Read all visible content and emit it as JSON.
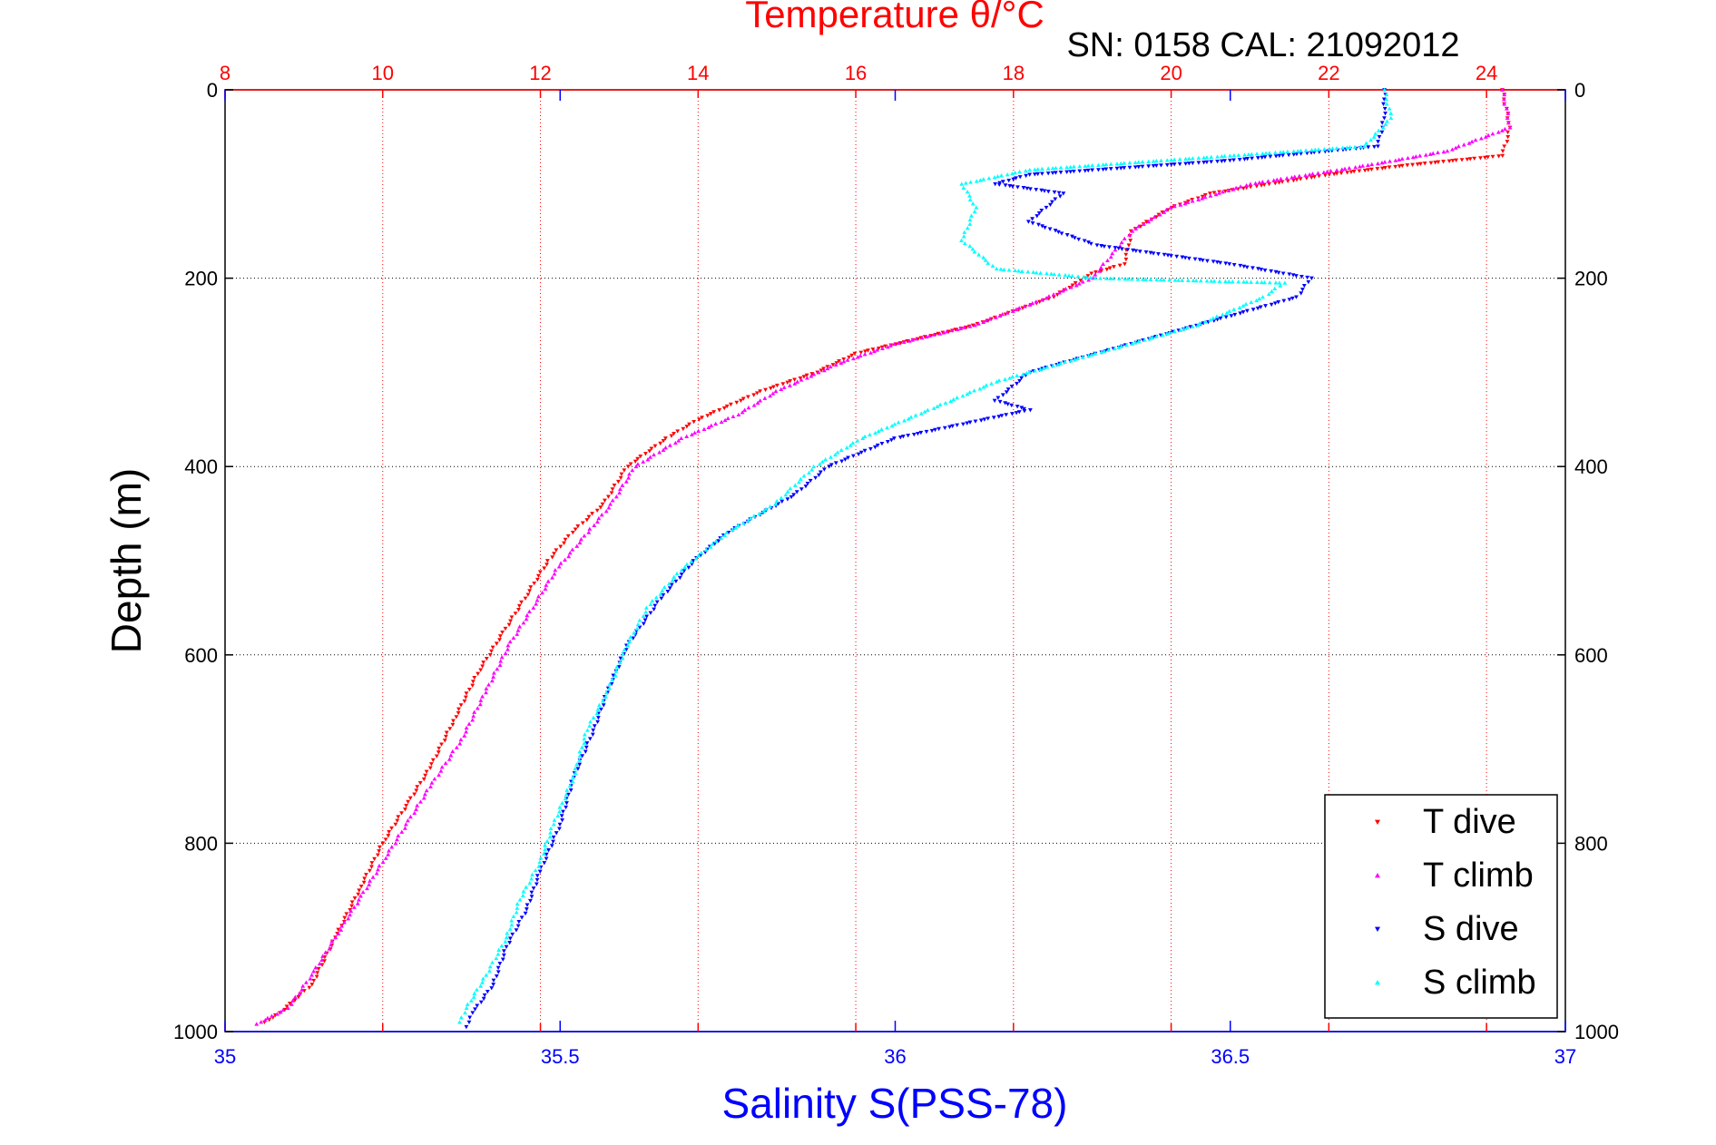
{
  "chart_data": {
    "type": "scatter",
    "title": "Temperature θ/°C",
    "subtitle": "SN: 0158  CAL: 21092012",
    "ylabel": "Depth (m)",
    "xlabel": "Salinity S(PSS-78)",
    "ylim": [
      0,
      1000
    ],
    "y_reversed": true,
    "y_ticks": [
      0,
      200,
      400,
      600,
      800,
      1000
    ],
    "x_top_label": "Temperature θ/°C",
    "x_top_lim": [
      8,
      25
    ],
    "x_top_ticks": [
      8,
      10,
      12,
      14,
      16,
      18,
      20,
      22,
      24
    ],
    "x_bottom_lim": [
      35,
      37
    ],
    "x_bottom_ticks": [
      "35",
      "35.5",
      "36",
      "36.5",
      "37"
    ],
    "grid": "dotted",
    "legend_position": "bottom-right",
    "colors": {
      "title": "#ff0000",
      "salinity_axis": "#0000ff",
      "t_dive": "#ff0000",
      "t_climb": "#ff00ff",
      "s_dive": "#0000ff",
      "s_climb": "#00ffff"
    },
    "series": [
      {
        "name": "T dive",
        "axis": "temperature",
        "marker": "triangle-down",
        "color": "#ff0000",
        "points": [
          [
            24.2,
            0
          ],
          [
            24.3,
            40
          ],
          [
            24.2,
            70
          ],
          [
            23.0,
            80
          ],
          [
            22.0,
            90
          ],
          [
            20.5,
            110
          ],
          [
            20.0,
            125
          ],
          [
            19.5,
            150
          ],
          [
            19.4,
            185
          ],
          [
            19.0,
            195
          ],
          [
            18.5,
            220
          ],
          [
            17.5,
            250
          ],
          [
            16.5,
            270
          ],
          [
            16.0,
            280
          ],
          [
            15.5,
            300
          ],
          [
            14.8,
            320
          ],
          [
            14.0,
            350
          ],
          [
            13.6,
            370
          ],
          [
            13.1,
            400
          ],
          [
            12.8,
            440
          ],
          [
            12.4,
            470
          ],
          [
            12.1,
            500
          ],
          [
            11.8,
            540
          ],
          [
            11.5,
            580
          ],
          [
            11.2,
            620
          ],
          [
            10.9,
            670
          ],
          [
            10.6,
            720
          ],
          [
            10.3,
            760
          ],
          [
            10.0,
            800
          ],
          [
            9.7,
            850
          ],
          [
            9.4,
            900
          ],
          [
            9.1,
            950
          ],
          [
            8.7,
            980
          ],
          [
            8.5,
            990
          ]
        ]
      },
      {
        "name": "T climb",
        "axis": "temperature",
        "marker": "triangle-up",
        "color": "#ff00ff",
        "points": [
          [
            24.2,
            0
          ],
          [
            24.3,
            40
          ],
          [
            23.5,
            65
          ],
          [
            22.5,
            80
          ],
          [
            21.0,
            100
          ],
          [
            20.0,
            125
          ],
          [
            19.5,
            150
          ],
          [
            19.3,
            170
          ],
          [
            19.0,
            200
          ],
          [
            18.3,
            225
          ],
          [
            17.5,
            250
          ],
          [
            16.5,
            270
          ],
          [
            15.8,
            290
          ],
          [
            15.0,
            320
          ],
          [
            14.5,
            345
          ],
          [
            13.8,
            370
          ],
          [
            13.2,
            400
          ],
          [
            12.9,
            440
          ],
          [
            12.6,
            470
          ],
          [
            12.2,
            510
          ],
          [
            11.9,
            550
          ],
          [
            11.6,
            590
          ],
          [
            11.3,
            640
          ],
          [
            11.0,
            690
          ],
          [
            10.6,
            740
          ],
          [
            10.3,
            780
          ],
          [
            10.0,
            820
          ],
          [
            9.7,
            860
          ],
          [
            9.4,
            900
          ],
          [
            9.1,
            940
          ],
          [
            8.8,
            975
          ],
          [
            8.4,
            992
          ]
        ]
      },
      {
        "name": "S dive",
        "axis": "salinity",
        "marker": "triangle-down",
        "color": "#0000ff",
        "points": [
          [
            36.73,
            0
          ],
          [
            36.73,
            30
          ],
          [
            36.72,
            60
          ],
          [
            36.5,
            75
          ],
          [
            36.2,
            90
          ],
          [
            36.15,
            100
          ],
          [
            36.25,
            110
          ],
          [
            36.2,
            140
          ],
          [
            36.3,
            165
          ],
          [
            36.5,
            185
          ],
          [
            36.62,
            200
          ],
          [
            36.6,
            220
          ],
          [
            36.5,
            240
          ],
          [
            36.3,
            280
          ],
          [
            36.2,
            300
          ],
          [
            36.15,
            330
          ],
          [
            36.2,
            340
          ],
          [
            36.0,
            370
          ],
          [
            35.9,
            400
          ],
          [
            35.85,
            430
          ],
          [
            35.75,
            470
          ],
          [
            35.7,
            500
          ],
          [
            35.65,
            540
          ],
          [
            35.6,
            590
          ],
          [
            35.57,
            640
          ],
          [
            35.55,
            680
          ],
          [
            35.52,
            730
          ],
          [
            35.5,
            780
          ],
          [
            35.47,
            830
          ],
          [
            35.45,
            870
          ],
          [
            35.42,
            910
          ],
          [
            35.4,
            950
          ],
          [
            35.37,
            980
          ],
          [
            35.36,
            995
          ]
        ]
      },
      {
        "name": "S climb",
        "axis": "salinity",
        "marker": "triangle-up",
        "color": "#00ffff",
        "points": [
          [
            36.73,
            0
          ],
          [
            36.74,
            30
          ],
          [
            36.7,
            60
          ],
          [
            36.5,
            70
          ],
          [
            36.2,
            85
          ],
          [
            36.1,
            100
          ],
          [
            36.12,
            125
          ],
          [
            36.1,
            160
          ],
          [
            36.15,
            190
          ],
          [
            36.3,
            200
          ],
          [
            36.58,
            205
          ],
          [
            36.55,
            220
          ],
          [
            36.45,
            250
          ],
          [
            36.3,
            280
          ],
          [
            36.15,
            310
          ],
          [
            36.05,
            340
          ],
          [
            35.95,
            370
          ],
          [
            35.88,
            400
          ],
          [
            35.82,
            440
          ],
          [
            35.75,
            470
          ],
          [
            35.68,
            510
          ],
          [
            35.63,
            550
          ],
          [
            35.6,
            590
          ],
          [
            35.57,
            640
          ],
          [
            35.54,
            680
          ],
          [
            35.52,
            730
          ],
          [
            35.49,
            780
          ],
          [
            35.47,
            820
          ],
          [
            35.44,
            860
          ],
          [
            35.42,
            900
          ],
          [
            35.39,
            940
          ],
          [
            35.36,
            975
          ],
          [
            35.35,
            990
          ]
        ]
      }
    ]
  }
}
